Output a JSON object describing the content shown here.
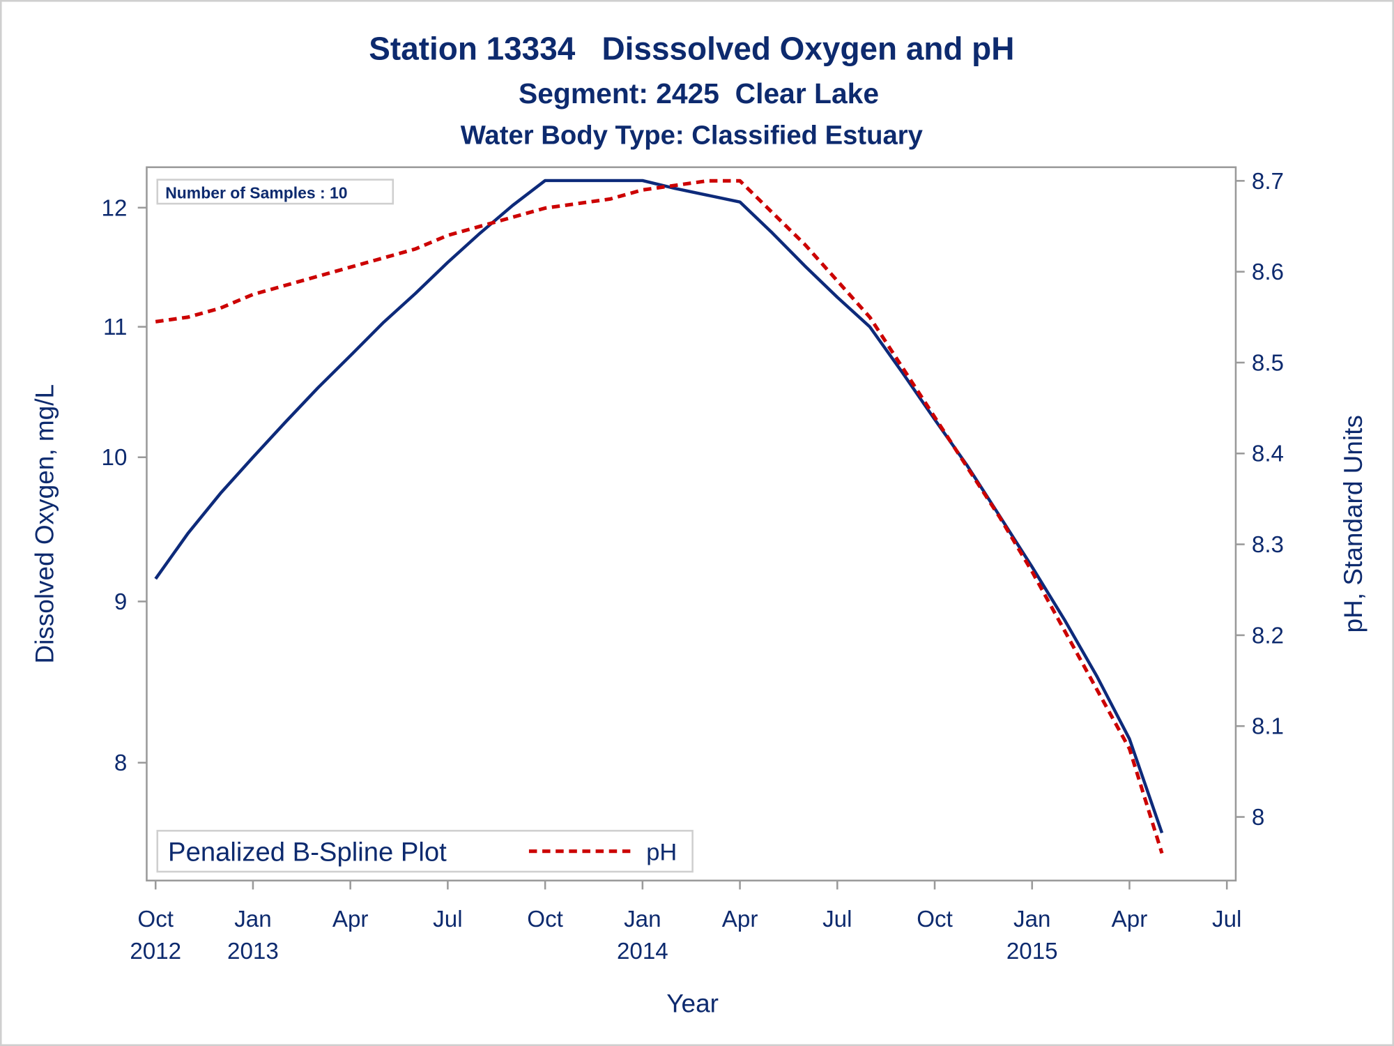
{
  "chart_data": {
    "type": "line",
    "title": "Station 13334   Disssolved Oxygen and pH",
    "subtitles": [
      "Segment: 2425  Clear Lake",
      "Water Body Type: Classified Estuary"
    ],
    "xlabel": "Year",
    "ylabel": "Dissolved Oxygen, mg/L",
    "y2label": "pH, Standard Units",
    "annotation": "Number of Samples : 10",
    "legend_title": "Penalized B-Spline Plot",
    "legend": "lower left",
    "yscale": "log",
    "x": [
      "2012-10",
      "2012-11",
      "2012-12",
      "2013-01",
      "2013-02",
      "2013-03",
      "2013-04",
      "2013-05",
      "2013-06",
      "2013-07",
      "2013-08",
      "2013-09",
      "2013-10",
      "2013-11",
      "2013-12",
      "2014-01",
      "2014-02",
      "2014-03",
      "2014-04",
      "2014-05",
      "2014-06",
      "2014-07",
      "2014-08",
      "2014-09",
      "2014-10",
      "2014-11",
      "2014-12",
      "2015-01",
      "2015-02",
      "2015-03",
      "2015-04",
      "2015-05"
    ],
    "series": [
      {
        "color": "#0d2a7a",
        "values": [
          9.15,
          9.46,
          9.74,
          10.0,
          10.26,
          10.52,
          10.77,
          11.03,
          11.27,
          11.53,
          11.78,
          12.02,
          12.24,
          12.24,
          12.24,
          12.24,
          12.17,
          12.11,
          12.05,
          11.78,
          11.5,
          11.24,
          11.0,
          10.64,
          10.28,
          9.94,
          9.58,
          9.23,
          8.88,
          8.52,
          8.14,
          7.6
        ]
      },
      {
        "name": "pH",
        "color": "#cc0000",
        "axis": "y2",
        "values": [
          8.545,
          8.55,
          8.56,
          8.575,
          8.585,
          8.595,
          8.605,
          8.615,
          8.625,
          8.64,
          8.65,
          8.66,
          8.67,
          8.675,
          8.68,
          8.69,
          8.695,
          8.7,
          8.7,
          8.665,
          8.63,
          8.59,
          8.55,
          8.495,
          8.44,
          8.385,
          8.33,
          8.27,
          8.205,
          8.14,
          8.075,
          7.96
        ]
      }
    ],
    "xlim": [
      "2012-10",
      "2015-07"
    ],
    "xticks": [
      {
        "value": "2012-10",
        "label": "Oct 2012"
      },
      {
        "value": "2013-01",
        "label": "Jan 2013"
      },
      {
        "value": "2013-04",
        "label": "Apr"
      },
      {
        "value": "2013-07",
        "label": "Jul"
      },
      {
        "value": "2013-10",
        "label": "Oct"
      },
      {
        "value": "2014-01",
        "label": "Jan 2014"
      },
      {
        "value": "2014-04",
        "label": "Apr"
      },
      {
        "value": "2014-07",
        "label": "Jul"
      },
      {
        "value": "2014-10",
        "label": "Oct"
      },
      {
        "value": "2015-01",
        "label": "Jan 2015"
      },
      {
        "value": "2015-04",
        "label": "Apr"
      },
      {
        "value": "2015-07",
        "label": "Jul"
      }
    ],
    "ylim": [
      7.34,
      12.36
    ],
    "yticks": [
      8,
      9,
      10,
      11,
      12
    ],
    "y2lim": [
      7.93,
      8.715
    ],
    "y2ticks": [
      8,
      8.1,
      8.2,
      8.3,
      8.4,
      8.5,
      8.6,
      8.7
    ]
  }
}
